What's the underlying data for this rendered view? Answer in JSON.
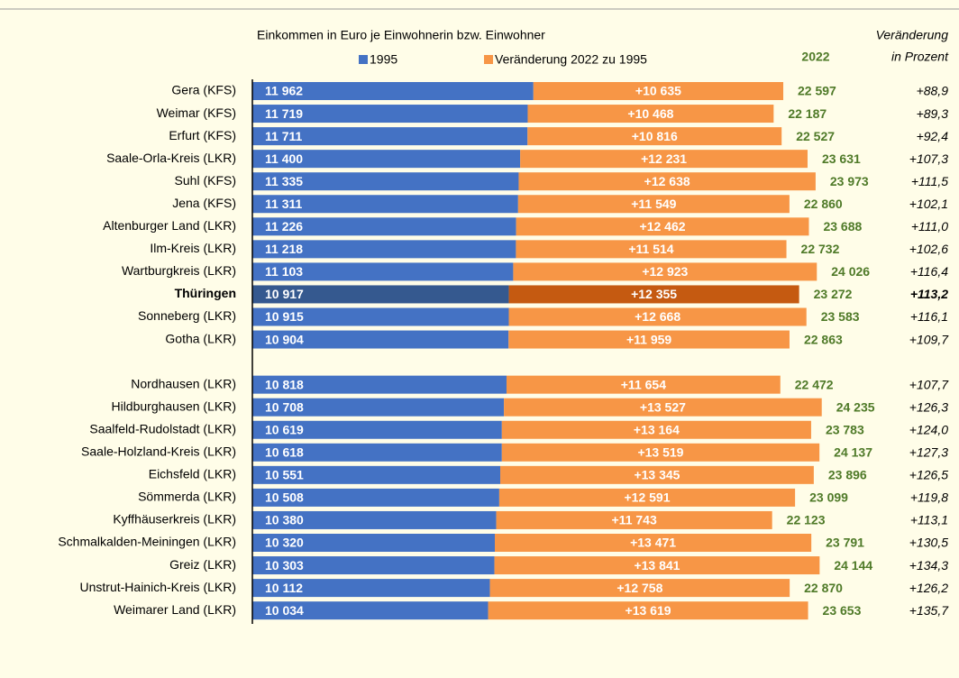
{
  "chart_data": {
    "type": "stacked-barh",
    "subtitle": "Einkommen in Euro je Einwohnerin bzw. Einwohner",
    "highlight": "Thüringen",
    "categories": [
      "Gera (KFS)",
      "Weimar (KFS)",
      "Erfurt (KFS)",
      "Saale-Orla-Kreis (LKR)",
      "Suhl (KFS)",
      "Jena (KFS)",
      "Altenburger Land (LKR)",
      "Ilm-Kreis (LKR)",
      "Wartburgkreis (LKR)",
      "Thüringen",
      "Sonneberg (LKR)",
      "Gotha (LKR)",
      null,
      "Nordhausen (LKR)",
      "Hildburghausen (LKR)",
      "Saalfeld-Rudolstadt (LKR)",
      "Saale-Holzland-Kreis (LKR)",
      "Eichsfeld (LKR)",
      "Sömmerda (LKR)",
      "Kyffhäuserkreis (LKR)",
      "Schmalkalden-Meiningen (LKR)",
      "Greiz (LKR)",
      "Unstrut-Hainich-Kreis (LKR)",
      "Weimarer Land (LKR)"
    ],
    "series": [
      {
        "name": "1995",
        "color": "#4472c4",
        "highlight_color": "#35598f",
        "values": [
          11962,
          11719,
          11711,
          11400,
          11335,
          11311,
          11226,
          11218,
          11103,
          10917,
          10915,
          10904,
          null,
          10818,
          10708,
          10619,
          10618,
          10551,
          10508,
          10380,
          10320,
          10303,
          10112,
          10034
        ],
        "value_labels": [
          "11 962",
          "11 719",
          "11 711",
          "11 400",
          "11 335",
          "11 311",
          "11 226",
          "11 218",
          "11 103",
          "10 917",
          "10 915",
          "10 904",
          null,
          "10 818",
          "10 708",
          "10 619",
          "10 618",
          "10 551",
          "10 508",
          "10 380",
          "10 320",
          "10 303",
          "10 112",
          "10 034"
        ]
      },
      {
        "name": "Veränderung 2022 zu 1995",
        "color": "#f79646",
        "highlight_color": "#c55a11",
        "values": [
          10635,
          10468,
          10816,
          12231,
          12638,
          11549,
          12462,
          11514,
          12923,
          12355,
          12668,
          11959,
          null,
          11654,
          13527,
          13164,
          13519,
          13345,
          12591,
          11743,
          13471,
          13841,
          12758,
          13619
        ],
        "value_labels": [
          "+10 635",
          "+10 468",
          "+10 816",
          "+12 231",
          "+12 638",
          "+11 549",
          "+12 462",
          "+11 514",
          "+12 923",
          "+12 355",
          "+12 668",
          "+11 959",
          null,
          "+11 654",
          "+13 527",
          "+13 164",
          "+13 519",
          "+13 345",
          "+12 591",
          "+11 743",
          "+13 471",
          "+13 841",
          "+12 758",
          "+13 619"
        ]
      }
    ],
    "totals": {
      "name": "2022",
      "values": [
        22597,
        22187,
        22527,
        23631,
        23973,
        22860,
        23688,
        22732,
        24026,
        23272,
        23583,
        22863,
        null,
        22472,
        24235,
        23783,
        24137,
        23896,
        23099,
        22123,
        23791,
        24144,
        22870,
        23653
      ],
      "value_labels": [
        "22 597",
        "22 187",
        "22 527",
        "23 631",
        "23 973",
        "22 860",
        "23 688",
        "22 732",
        "24 026",
        "23 272",
        "23 583",
        "22 863",
        null,
        "22 472",
        "24 235",
        "23 783",
        "24 137",
        "23 896",
        "23 099",
        "22 123",
        "23 791",
        "24 144",
        "22 870",
        "23 653"
      ]
    },
    "change_pct": {
      "name": [
        "Veränderung",
        "in Prozent"
      ],
      "values": [
        88.9,
        89.3,
        92.4,
        107.3,
        111.5,
        102.1,
        111.0,
        102.6,
        116.4,
        113.2,
        116.1,
        109.7,
        null,
        107.7,
        126.3,
        124.0,
        127.3,
        126.5,
        119.8,
        113.1,
        130.5,
        134.3,
        126.2,
        135.7
      ],
      "value_labels": [
        "+88,9",
        "+89,3",
        "+92,4",
        "+107,3",
        "+111,5",
        "+102,1",
        "+111,0",
        "+102,6",
        "+116,4",
        "+113,2",
        "+116,1",
        "+109,7",
        null,
        "+107,7",
        "+126,3",
        "+124,0",
        "+127,3",
        "+126,5",
        "+119,8",
        "+113,1",
        "+130,5",
        "+134,3",
        "+126,2",
        "+135,7"
      ]
    },
    "xlim": [
      0,
      30000
    ]
  }
}
